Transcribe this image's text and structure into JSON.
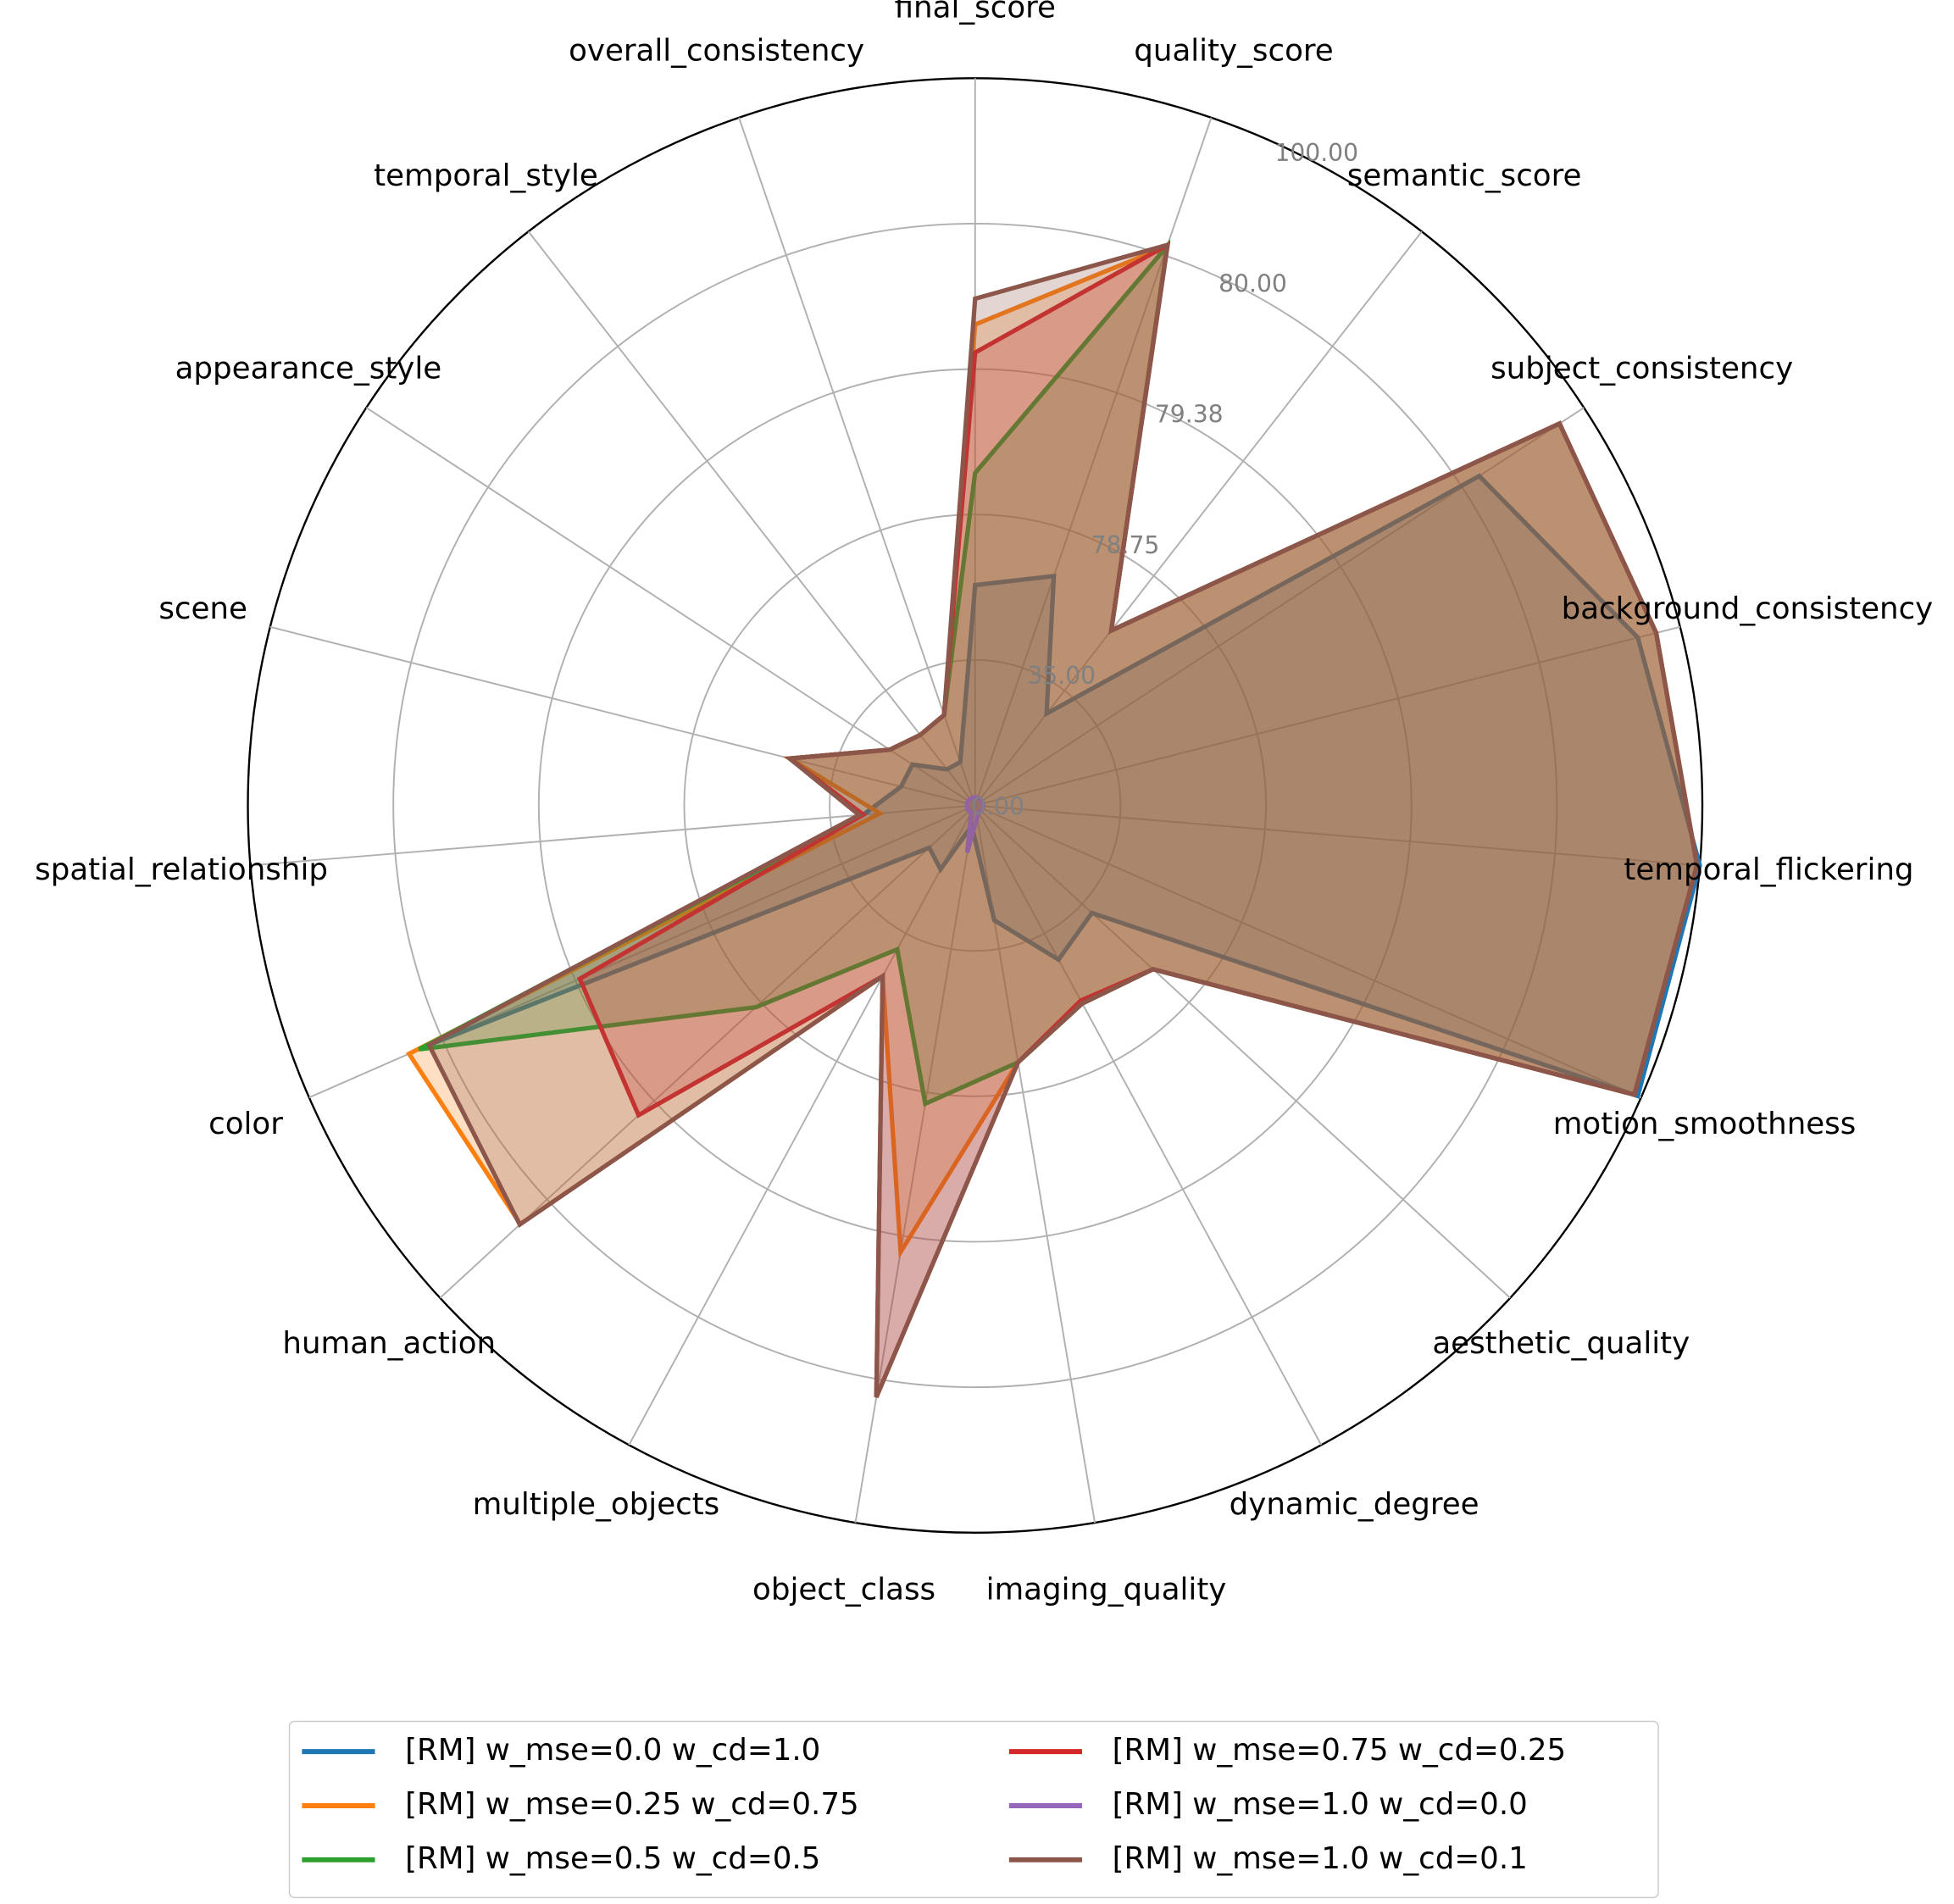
{
  "chart_data": {
    "type": "radar",
    "categories": [
      "final_score",
      "quality_score",
      "semantic_score",
      "subject_consistency",
      "background_consistency",
      "temporal_flickering",
      "motion_smoothness",
      "aesthetic_quality",
      "dynamic_degree",
      "imaging_quality",
      "object_class",
      "multiple_objects",
      "human_action",
      "color",
      "spatial_relationship",
      "scene",
      "appearance_style",
      "temporal_style",
      "overall_consistency"
    ],
    "ylim": [
      0,
      100
    ],
    "yticks": [
      {
        "value": 0,
        "label": "0.00"
      },
      {
        "value": 35,
        "label": "35.00"
      },
      {
        "value": 78.75,
        "label": "78.75"
      },
      {
        "value": 79.38,
        "label": "79.38"
      },
      {
        "value": 80,
        "label": "80.00"
      },
      {
        "value": 100,
        "label": "100.00"
      }
    ],
    "grid": true,
    "legend": "lower center",
    "series": [
      {
        "name": "[RM] w_mse=0.0 w_cd=1.0",
        "color": "#1f77b4",
        "values": [
          57.5,
          64.2,
          28,
          82.8,
          94,
          100,
          99.5,
          39,
          44,
          28,
          5,
          17.5,
          15,
          82,
          27,
          18.4,
          18,
          11,
          11
        ]
      },
      {
        "name": "[RM] w_mse=0.25 w_cd=0.75",
        "color": "#ff7f0e",
        "values": [
          79.57,
          81.3,
          57.9,
          96,
          96.6,
          99.6,
          99,
          64,
          59,
          69.6,
          79.45,
          49.7,
          85,
          85,
          23,
          48.8,
          24.5,
          21.5,
          23
        ]
      },
      {
        "name": "[RM] w_mse=0.5 w_cd=0.5",
        "color": "#2ca02c",
        "values": [
          78.93,
          81.3,
          57.9,
          96,
          96.6,
          99.6,
          99,
          64,
          59,
          69.6,
          78.8,
          40.5,
          78.78,
          83.5,
          27,
          48.8,
          24.5,
          21.5,
          23
        ]
      },
      {
        "name": "[RM] w_mse=0.75 w_cd=0.25",
        "color": "#d62728",
        "values": [
          79.45,
          81.5,
          57.9,
          96,
          96.6,
          99.6,
          99,
          64,
          58,
          69.6,
          82.5,
          49.7,
          79.47,
          79.36,
          27,
          48.8,
          24.5,
          21.5,
          23
        ]
      },
      {
        "name": "[RM] w_mse=1.0 w_cd=0.0",
        "color": "#9467bd",
        "values": [
          2,
          2,
          2,
          2,
          2,
          2,
          2,
          2,
          2,
          3,
          11.5,
          2,
          2,
          2,
          2,
          2,
          2,
          2,
          2
        ]
      },
      {
        "name": "[RM] w_mse=1.0 w_cd=0.1",
        "color": "#8c564b",
        "values": [
          79.68,
          81.5,
          57.9,
          96,
          96.6,
          99.6,
          99,
          64,
          59,
          69.6,
          82.5,
          49.7,
          85.1,
          82,
          28,
          48.8,
          24.5,
          21.5,
          23
        ]
      }
    ]
  }
}
